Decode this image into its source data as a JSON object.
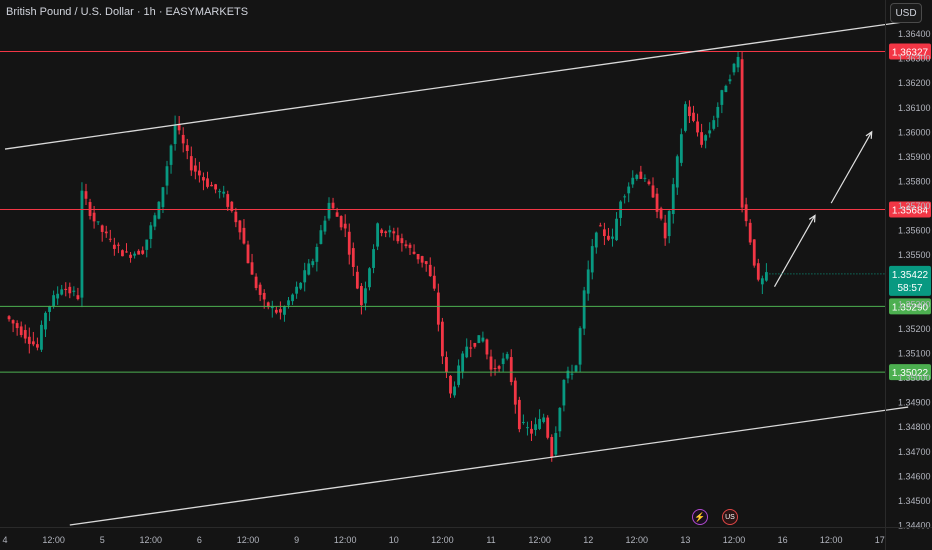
{
  "header": {
    "title": "British Pound / U.S. Dollar · 1h · EASYMARKETS",
    "currency": "USD"
  },
  "events": {
    "flash_icon": "lightning-icon",
    "flag_icon": "us-flag-icon",
    "flash_glyph": "⚡",
    "flag_glyph": "US"
  },
  "chart_data": {
    "type": "candlestick",
    "title": "British Pound / U.S. Dollar · 1h · EASYMARKETS",
    "ylim": [
      1.344,
      1.365
    ],
    "y_ticks": [
      "1.34400",
      "1.34500",
      "1.34600",
      "1.34700",
      "1.34800",
      "1.34900",
      "1.35000",
      "1.35100",
      "1.35200",
      "1.35300",
      "1.35400",
      "1.35500",
      "1.35600",
      "1.35700",
      "1.35800",
      "1.35900",
      "1.36000",
      "1.36100",
      "1.36200",
      "1.36300",
      "1.36400"
    ],
    "x_ticks": [
      {
        "label": "4",
        "bar": 0
      },
      {
        "label": "12:00",
        "bar": 12
      },
      {
        "label": "5",
        "bar": 24
      },
      {
        "label": "12:00",
        "bar": 36
      },
      {
        "label": "6",
        "bar": 48
      },
      {
        "label": "12:00",
        "bar": 60
      },
      {
        "label": "9",
        "bar": 72
      },
      {
        "label": "12:00",
        "bar": 84
      },
      {
        "label": "10",
        "bar": 96
      },
      {
        "label": "12:00",
        "bar": 108
      },
      {
        "label": "11",
        "bar": 120
      },
      {
        "label": "12:00",
        "bar": 132
      },
      {
        "label": "12",
        "bar": 144
      },
      {
        "label": "12:00",
        "bar": 156
      },
      {
        "label": "13",
        "bar": 168
      },
      {
        "label": "12:00",
        "bar": 180
      },
      {
        "label": "16",
        "bar": 192
      },
      {
        "label": "12:00",
        "bar": 204
      },
      {
        "label": "17",
        "bar": 216
      }
    ],
    "horizontal_levels": [
      {
        "value": 1.36327,
        "label": "1.36327",
        "color": "#f23645"
      },
      {
        "value": 1.35684,
        "label": "1.35684",
        "color": "#f23645"
      },
      {
        "value": 1.3529,
        "label": "1.35290",
        "color": "#4caf50"
      },
      {
        "value": 1.35022,
        "label": "1.35022",
        "color": "#4caf50"
      }
    ],
    "current_price": {
      "value": 1.35422,
      "label": "1.35422",
      "countdown": "58:57",
      "color": "#089981"
    },
    "trendlines": [
      {
        "from": {
          "bar": 0,
          "price": 1.3593
        },
        "to": {
          "bar": 223,
          "price": 1.3645
        }
      },
      {
        "from": {
          "bar": 16,
          "price": 1.344
        },
        "to": {
          "bar": 223,
          "price": 1.3488
        }
      }
    ],
    "arrows": [
      {
        "from": {
          "bar": 190,
          "price": 1.3537
        },
        "to": {
          "bar": 200,
          "price": 1.3566
        }
      },
      {
        "from": {
          "bar": 204,
          "price": 1.3571
        },
        "to": {
          "bar": 214,
          "price": 1.36
        }
      }
    ],
    "anchors": [
      [
        0,
        1.3525
      ],
      [
        4,
        1.3519
      ],
      [
        8,
        1.3512
      ],
      [
        10,
        1.3527
      ],
      [
        14,
        1.3537
      ],
      [
        18,
        1.3533
      ],
      [
        19,
        1.3575
      ],
      [
        22,
        1.3564
      ],
      [
        26,
        1.3555
      ],
      [
        30,
        1.355
      ],
      [
        34,
        1.3552
      ],
      [
        38,
        1.357
      ],
      [
        42,
        1.3603
      ],
      [
        46,
        1.3586
      ],
      [
        50,
        1.3579
      ],
      [
        54,
        1.3574
      ],
      [
        58,
        1.3561
      ],
      [
        61,
        1.3541
      ],
      [
        64,
        1.353
      ],
      [
        68,
        1.3526
      ],
      [
        72,
        1.3536
      ],
      [
        76,
        1.3548
      ],
      [
        80,
        1.3571
      ],
      [
        84,
        1.356
      ],
      [
        86,
        1.3544
      ],
      [
        88,
        1.353
      ],
      [
        92,
        1.3561
      ],
      [
        96,
        1.3558
      ],
      [
        100,
        1.3552
      ],
      [
        104,
        1.3546
      ],
      [
        106,
        1.3535
      ],
      [
        108,
        1.3509
      ],
      [
        110,
        1.3493
      ],
      [
        114,
        1.3513
      ],
      [
        118,
        1.3516
      ],
      [
        120,
        1.3503
      ],
      [
        124,
        1.3508
      ],
      [
        127,
        1.3481
      ],
      [
        130,
        1.3478
      ],
      [
        133,
        1.3484
      ],
      [
        135,
        1.3469
      ],
      [
        138,
        1.3499
      ],
      [
        141,
        1.3505
      ],
      [
        143,
        1.3534
      ],
      [
        146,
        1.3561
      ],
      [
        150,
        1.3556
      ],
      [
        152,
        1.3573
      ],
      [
        156,
        1.3584
      ],
      [
        160,
        1.3575
      ],
      [
        163,
        1.3557
      ],
      [
        165,
        1.3577
      ],
      [
        168,
        1.3611
      ],
      [
        172,
        1.3596
      ],
      [
        174,
        1.3601
      ],
      [
        178,
        1.362
      ],
      [
        181,
        1.363
      ],
      [
        182,
        1.3571
      ],
      [
        184,
        1.3556
      ],
      [
        186,
        1.3538
      ],
      [
        188,
        1.3541
      ]
    ],
    "bar_count": 189
  }
}
